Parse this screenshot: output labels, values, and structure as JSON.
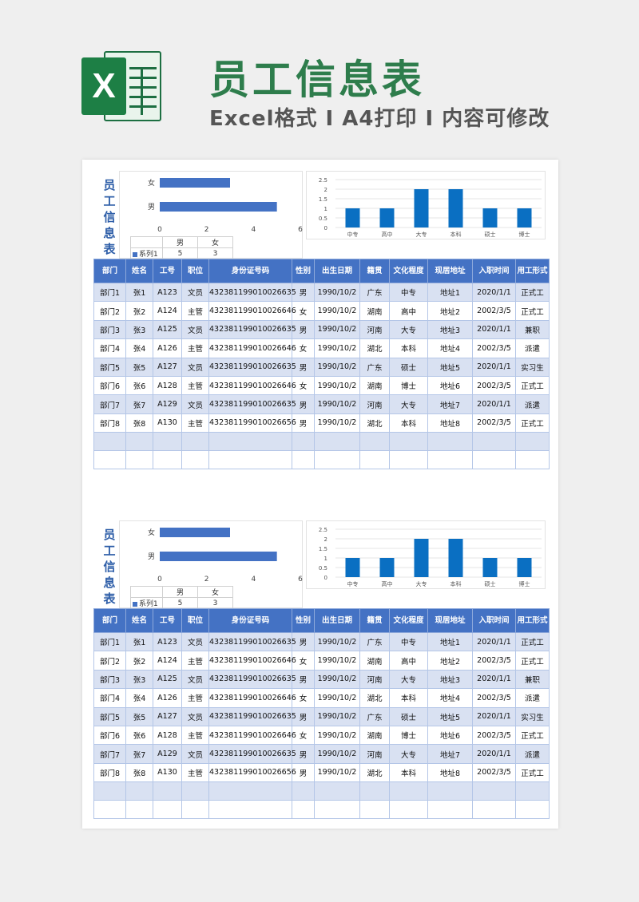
{
  "header": {
    "title": "员工信息表",
    "subtitle": "Excel格式 I A4打印 I 内容可修改",
    "logo_letter": "X"
  },
  "sheet": {
    "vertical_title": [
      "员",
      "工",
      "信",
      "息",
      "表"
    ],
    "table_headers": [
      "部门",
      "姓名",
      "工号",
      "职位",
      "身份证号码",
      "性别",
      "出生日期",
      "籍贯",
      "文化程度",
      "现居地址",
      "入职时间",
      "用工形式"
    ],
    "rows": [
      [
        "部门1",
        "张1",
        "A123",
        "文员",
        "432381199010026635",
        "男",
        "1990/10/2",
        "广东",
        "中专",
        "地址1",
        "2020/1/1",
        "正式工"
      ],
      [
        "部门2",
        "张2",
        "A124",
        "主管",
        "432381199010026646",
        "女",
        "1990/10/2",
        "湖南",
        "高中",
        "地址2",
        "2002/3/5",
        "正式工"
      ],
      [
        "部门3",
        "张3",
        "A125",
        "文员",
        "432381199010026635",
        "男",
        "1990/10/2",
        "河南",
        "大专",
        "地址3",
        "2020/1/1",
        "兼职"
      ],
      [
        "部门4",
        "张4",
        "A126",
        "主管",
        "432381199010026646",
        "女",
        "1990/10/2",
        "湖北",
        "本科",
        "地址4",
        "2002/3/5",
        "派遣"
      ],
      [
        "部门5",
        "张5",
        "A127",
        "文员",
        "432381199010026635",
        "男",
        "1990/10/2",
        "广东",
        "硕士",
        "地址5",
        "2020/1/1",
        "实习生"
      ],
      [
        "部门6",
        "张6",
        "A128",
        "主管",
        "432381199010026646",
        "女",
        "1990/10/2",
        "湖南",
        "博士",
        "地址6",
        "2002/3/5",
        "正式工"
      ],
      [
        "部门7",
        "张7",
        "A129",
        "文员",
        "432381199010026635",
        "男",
        "1990/10/2",
        "河南",
        "大专",
        "地址7",
        "2020/1/1",
        "派遣"
      ],
      [
        "部门8",
        "张8",
        "A130",
        "主管",
        "432381199010026656",
        "男",
        "1990/10/2",
        "湖北",
        "本科",
        "地址8",
        "2002/3/5",
        "正式工"
      ]
    ],
    "mini_table": {
      "series_label": "系列1",
      "categories": [
        "男",
        "女"
      ],
      "values": [
        "5",
        "3"
      ]
    }
  },
  "chart_data": [
    {
      "type": "bar",
      "orientation": "horizontal",
      "categories": [
        "女",
        "男"
      ],
      "series": [
        {
          "name": "系列1",
          "values": [
            3,
            5
          ]
        }
      ],
      "xlim": [
        0,
        6
      ],
      "xticks": [
        "0",
        "2",
        "4",
        "6"
      ],
      "color": "#4472c4"
    },
    {
      "type": "bar",
      "categories": [
        "中专",
        "高中",
        "大专",
        "本科",
        "硕士",
        "博士"
      ],
      "values": [
        1,
        1,
        2,
        2,
        1,
        1
      ],
      "ylim": [
        0,
        2.5
      ],
      "yticks": [
        "0",
        "0.5",
        "1",
        "1.5",
        "2",
        "2.5"
      ],
      "color": "#0a6fc2",
      "grid": true
    }
  ],
  "colors": {
    "brand_green": "#2e7d4c",
    "header_blue": "#4472c4",
    "band_blue": "#d9e1f2",
    "title_blue": "#2e5ea8"
  }
}
